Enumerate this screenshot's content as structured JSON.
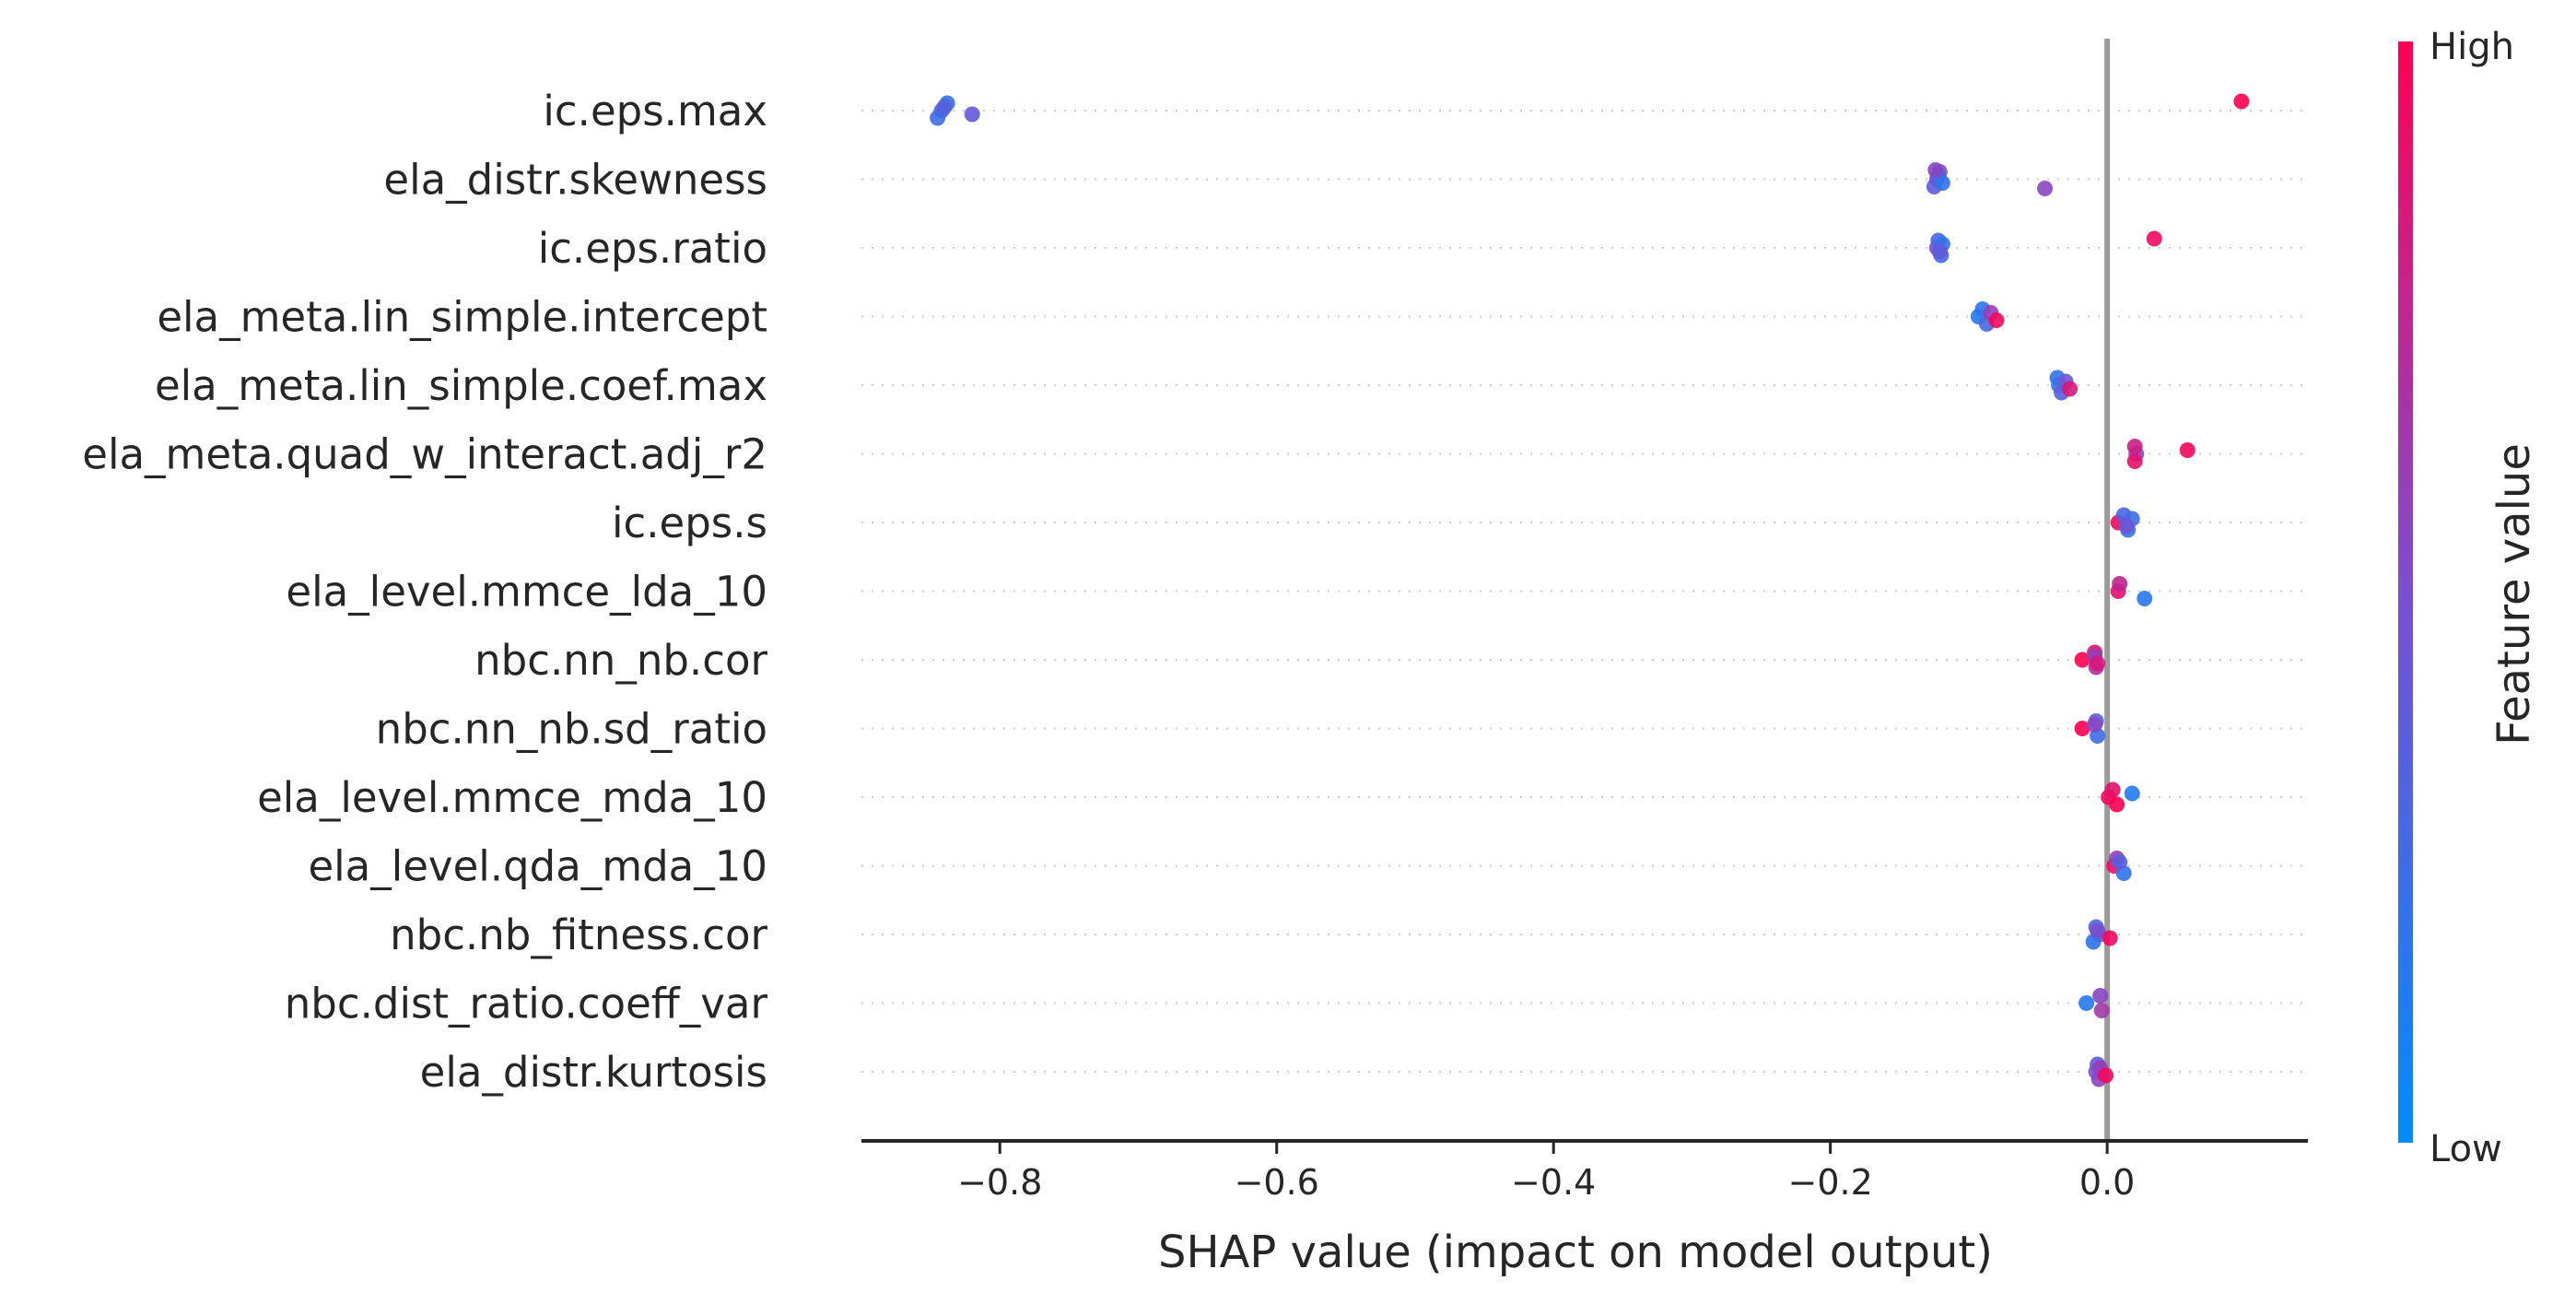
{
  "chart_data": {
    "type": "scatter",
    "xlabel": "SHAP value (impact on model output)",
    "xlim": [
      -0.9,
      0.145
    ],
    "xticks": [
      {
        "value": -0.8,
        "label": "−0.8"
      },
      {
        "value": -0.6,
        "label": "−0.6"
      },
      {
        "value": -0.4,
        "label": "−0.4"
      },
      {
        "value": -0.2,
        "label": "−0.2"
      },
      {
        "value": 0.0,
        "label": "0.0"
      }
    ],
    "zero_line": 0.0,
    "grid": "dotted horizontal rows per feature",
    "colorbar": {
      "title": "Feature value",
      "high_label": "High",
      "low_label": "Low",
      "low_color": "#008bfb",
      "high_color": "#ff0052"
    },
    "features": [
      {
        "name": "ic.eps.max",
        "points": [
          [
            -0.842,
            0.3
          ],
          [
            -0.838,
            0.2
          ],
          [
            -0.845,
            0.25
          ],
          [
            -0.84,
            0.35
          ],
          [
            -0.82,
            0.4
          ],
          [
            0.097,
            1.0
          ]
        ]
      },
      {
        "name": "ela_distr.skewness",
        "points": [
          [
            -0.123,
            0.5
          ],
          [
            -0.121,
            0.45
          ],
          [
            -0.125,
            0.4
          ],
          [
            -0.122,
            0.35
          ],
          [
            -0.119,
            0.2
          ],
          [
            -0.124,
            0.55
          ],
          [
            -0.045,
            0.55
          ]
        ]
      },
      {
        "name": "ic.eps.ratio",
        "points": [
          [
            -0.123,
            0.5
          ],
          [
            -0.122,
            0.3
          ],
          [
            -0.12,
            0.25
          ],
          [
            -0.119,
            0.2
          ],
          [
            -0.121,
            0.4
          ],
          [
            0.034,
            0.95
          ]
        ]
      },
      {
        "name": "ela_meta.lin_simple.intercept",
        "points": [
          [
            -0.093,
            0.15
          ],
          [
            -0.09,
            0.2
          ],
          [
            -0.087,
            0.3
          ],
          [
            -0.084,
            0.6
          ],
          [
            -0.08,
            0.95
          ]
        ]
      },
      {
        "name": "ela_meta.lin_simple.coef.max",
        "points": [
          [
            -0.035,
            0.25
          ],
          [
            -0.036,
            0.2
          ],
          [
            -0.033,
            0.35
          ],
          [
            -0.03,
            0.45
          ],
          [
            -0.027,
            0.85
          ]
        ]
      },
      {
        "name": "ela_meta.quad_w_interact.adj_r2",
        "points": [
          [
            0.021,
            0.55
          ],
          [
            0.02,
            0.8
          ],
          [
            0.02,
            0.9
          ],
          [
            0.058,
            0.95
          ]
        ]
      },
      {
        "name": "ic.eps.s",
        "points": [
          [
            0.008,
            0.95
          ],
          [
            0.012,
            0.3
          ],
          [
            0.015,
            0.2
          ],
          [
            0.018,
            0.25
          ],
          [
            0.014,
            0.45
          ]
        ]
      },
      {
        "name": "ela_level.mmce_lda_10",
        "points": [
          [
            0.008,
            0.9
          ],
          [
            0.009,
            0.75
          ],
          [
            0.027,
            0.15
          ]
        ]
      },
      {
        "name": "nbc.nn_nb.cor",
        "points": [
          [
            -0.018,
            1.0
          ],
          [
            -0.009,
            0.9
          ],
          [
            -0.008,
            0.7
          ],
          [
            -0.009,
            0.6
          ],
          [
            -0.007,
            0.85
          ]
        ]
      },
      {
        "name": "nbc.nn_nb.sd_ratio",
        "points": [
          [
            -0.018,
            1.0
          ],
          [
            -0.008,
            0.35
          ],
          [
            -0.007,
            0.25
          ],
          [
            -0.009,
            0.55
          ]
        ]
      },
      {
        "name": "ela_level.mmce_mda_10",
        "points": [
          [
            0.001,
            0.95
          ],
          [
            0.004,
            0.9
          ],
          [
            0.007,
            1.0
          ],
          [
            0.018,
            0.15
          ]
        ]
      },
      {
        "name": "ela_level.qda_mda_10",
        "points": [
          [
            0.005,
            0.95
          ],
          [
            0.007,
            0.6
          ],
          [
            0.012,
            0.2
          ],
          [
            0.009,
            0.35
          ]
        ]
      },
      {
        "name": "nbc.nb_fitness.cor",
        "points": [
          [
            -0.006,
            0.45
          ],
          [
            -0.008,
            0.3
          ],
          [
            -0.01,
            0.2
          ],
          [
            -0.007,
            0.5
          ],
          [
            0.002,
            0.95
          ]
        ]
      },
      {
        "name": "nbc.dist_ratio.coeff_var",
        "points": [
          [
            -0.015,
            0.15
          ],
          [
            -0.005,
            0.55
          ],
          [
            -0.004,
            0.65
          ]
        ]
      },
      {
        "name": "ela_distr.kurtosis",
        "points": [
          [
            -0.008,
            0.5
          ],
          [
            -0.007,
            0.4
          ],
          [
            -0.006,
            0.55
          ],
          [
            -0.005,
            0.6
          ],
          [
            -0.001,
            0.95
          ]
        ]
      }
    ]
  }
}
